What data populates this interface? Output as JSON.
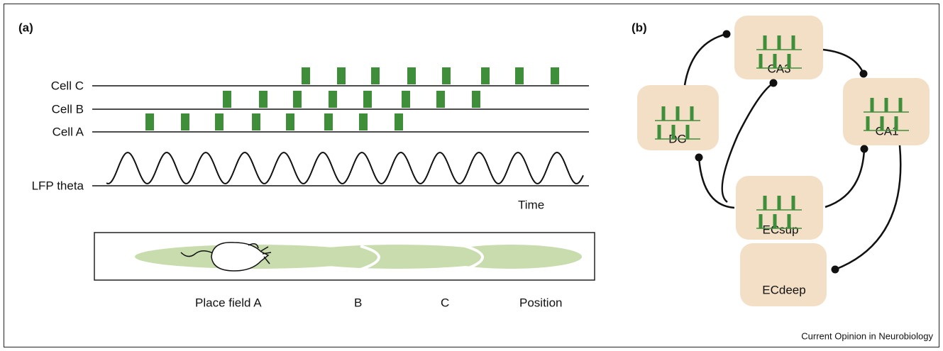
{
  "panel_a": {
    "label": "(a)",
    "rows": [
      "Cell C",
      "Cell B",
      "Cell A",
      "LFP theta"
    ],
    "time_label": "Time",
    "track_labels": [
      "Place field  A",
      "B",
      "C",
      "Position"
    ]
  },
  "panel_b": {
    "label": "(b)",
    "nodes": [
      "CA3",
      "DG",
      "CA1",
      "ECsup",
      "ECdeep"
    ]
  },
  "footer": "Current Opinion in Neurobiology"
}
